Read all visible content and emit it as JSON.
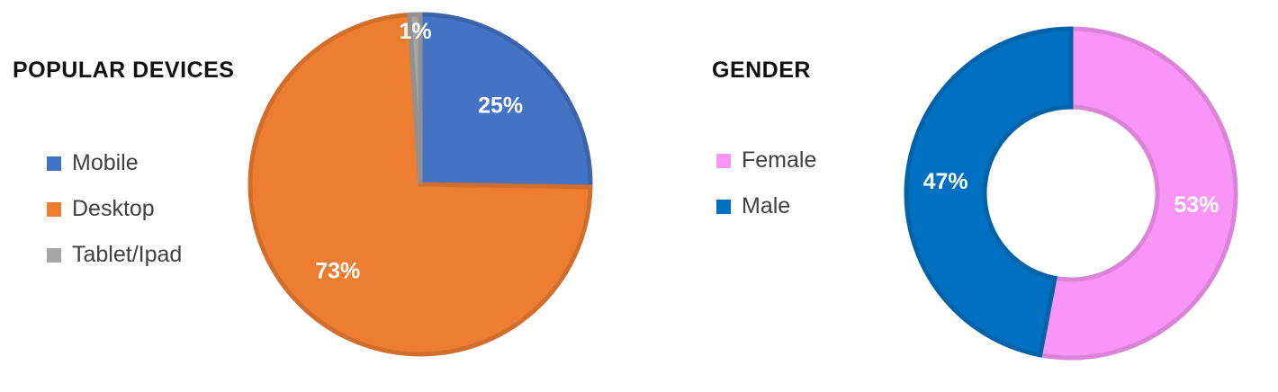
{
  "chart_data": [
    {
      "type": "pie",
      "title": "POPULAR DEVICES",
      "categories": [
        "Mobile",
        "Desktop",
        "Tablet/Ipad"
      ],
      "values": [
        25,
        73,
        1
      ],
      "labels": [
        "25%",
        "73%",
        "1%"
      ],
      "colors": [
        "#4472C4",
        "#ED7D31",
        "#A5A5A5"
      ],
      "legend": "left"
    },
    {
      "type": "pie",
      "subtype": "donut",
      "title": "GENDER",
      "categories": [
        "Female",
        "Male"
      ],
      "values": [
        53,
        47
      ],
      "labels": [
        "53%",
        "47%"
      ],
      "colors": [
        "#F895F6",
        "#0070C0"
      ],
      "legend": "left"
    }
  ]
}
